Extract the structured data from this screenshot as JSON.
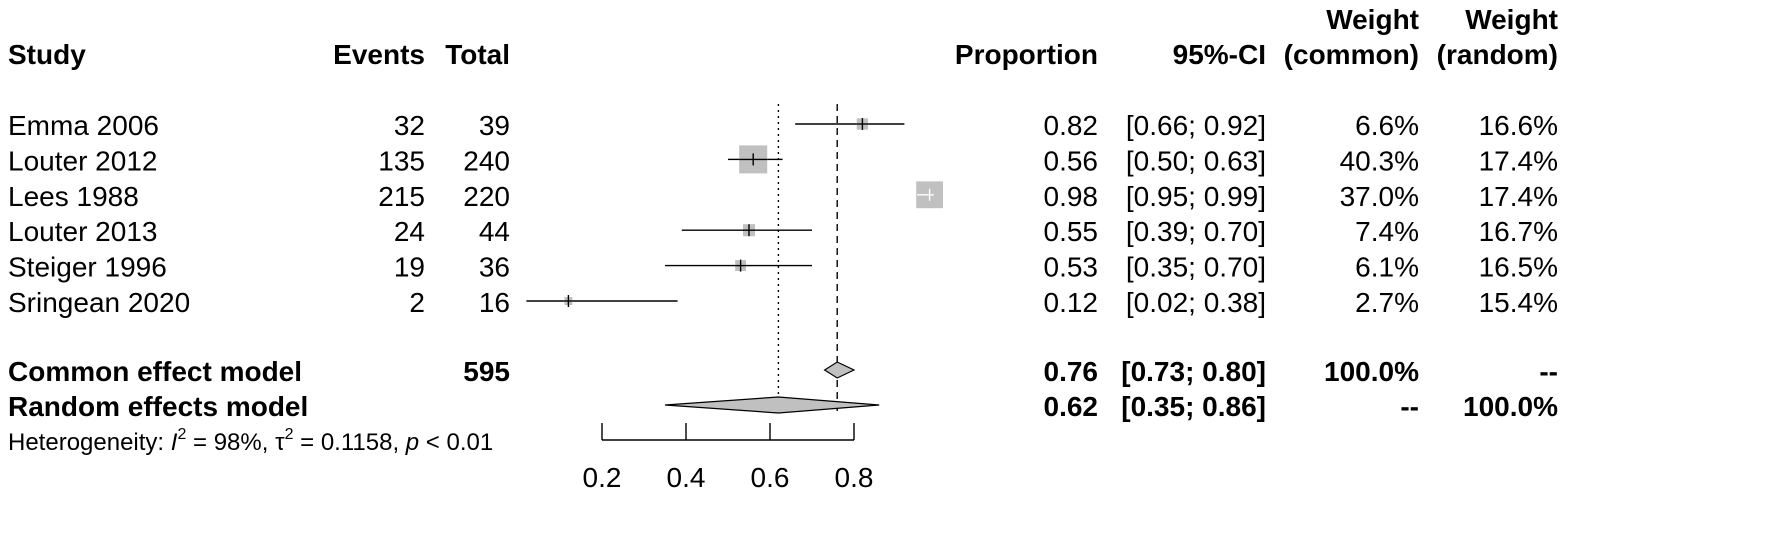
{
  "chart_data": {
    "type": "forest",
    "headers": {
      "study": "Study",
      "events": "Events",
      "total": "Total",
      "proportion": "Proportion",
      "ci": "95%-CI",
      "weight_common_line1": "Weight",
      "weight_common_line2": "(common)",
      "weight_random_line1": "Weight",
      "weight_random_line2": "(random)"
    },
    "studies": [
      {
        "name": "Emma 2006",
        "events": "32",
        "total": "39",
        "proportion": 0.82,
        "lower": 0.66,
        "upper": 0.92,
        "prop_text": "0.82",
        "ci_text": "[0.66; 0.92]",
        "w_common": 6.6,
        "w_common_text": "6.6%",
        "w_random_text": "16.6%"
      },
      {
        "name": "Louter 2012",
        "events": "135",
        "total": "240",
        "proportion": 0.56,
        "lower": 0.5,
        "upper": 0.63,
        "prop_text": "0.56",
        "ci_text": "[0.50; 0.63]",
        "w_common": 40.3,
        "w_common_text": "40.3%",
        "w_random_text": "17.4%"
      },
      {
        "name": "Lees 1988",
        "events": "215",
        "total": "220",
        "proportion": 0.98,
        "lower": 0.95,
        "upper": 0.99,
        "prop_text": "0.98",
        "ci_text": "[0.95; 0.99]",
        "w_common": 37.0,
        "w_common_text": "37.0%",
        "w_random_text": "17.4%"
      },
      {
        "name": "Louter 2013",
        "events": "24",
        "total": "44",
        "proportion": 0.55,
        "lower": 0.39,
        "upper": 0.7,
        "prop_text": "0.55",
        "ci_text": "[0.39; 0.70]",
        "w_common": 7.4,
        "w_common_text": "7.4%",
        "w_random_text": "16.7%"
      },
      {
        "name": "Steiger 1996",
        "events": "19",
        "total": "36",
        "proportion": 0.53,
        "lower": 0.35,
        "upper": 0.7,
        "prop_text": "0.53",
        "ci_text": "[0.35; 0.70]",
        "w_common": 6.1,
        "w_common_text": "6.1%",
        "w_random_text": "16.5%"
      },
      {
        "name": "Sringean 2020",
        "events": "2",
        "total": "16",
        "proportion": 0.12,
        "lower": 0.02,
        "upper": 0.38,
        "prop_text": "0.12",
        "ci_text": "[0.02; 0.38]",
        "w_common": 2.7,
        "w_common_text": "2.7%",
        "w_random_text": "15.4%"
      }
    ],
    "common_model": {
      "label": "Common effect model",
      "total": "595",
      "estimate": 0.76,
      "lower": 0.73,
      "upper": 0.8,
      "prop_text": "0.76",
      "ci_text": "[0.73; 0.80]",
      "w_common_text": "100.0%",
      "w_random_text": "--"
    },
    "random_model": {
      "label": "Random effects model",
      "estimate": 0.62,
      "lower": 0.35,
      "upper": 0.86,
      "prop_text": "0.62",
      "ci_text": "[0.35; 0.86]",
      "w_common_text": "--",
      "w_random_text": "100.0%"
    },
    "heterogeneity": {
      "prefix": "Heterogeneity: ",
      "i2_symbol": "I",
      "i2_sup": "2",
      "i2_value": " = 98%, ",
      "tau_symbol": "τ",
      "tau_sup": "2",
      "tau_value": " = 0.1158, ",
      "p_symbol": "p",
      "p_value": " < 0.01"
    },
    "x_axis": {
      "ticks": [
        0.2,
        0.4,
        0.6,
        0.8
      ],
      "tick_labels": [
        "0.2",
        "0.4",
        "0.6",
        "0.8"
      ],
      "range": [
        0.2,
        0.8
      ]
    },
    "reference_lines": {
      "dotted": 0.62,
      "dashed": 0.76
    },
    "colors": {
      "box": "#c0c0c0",
      "diamond": "#c0c0c0",
      "line": "#000000"
    }
  }
}
